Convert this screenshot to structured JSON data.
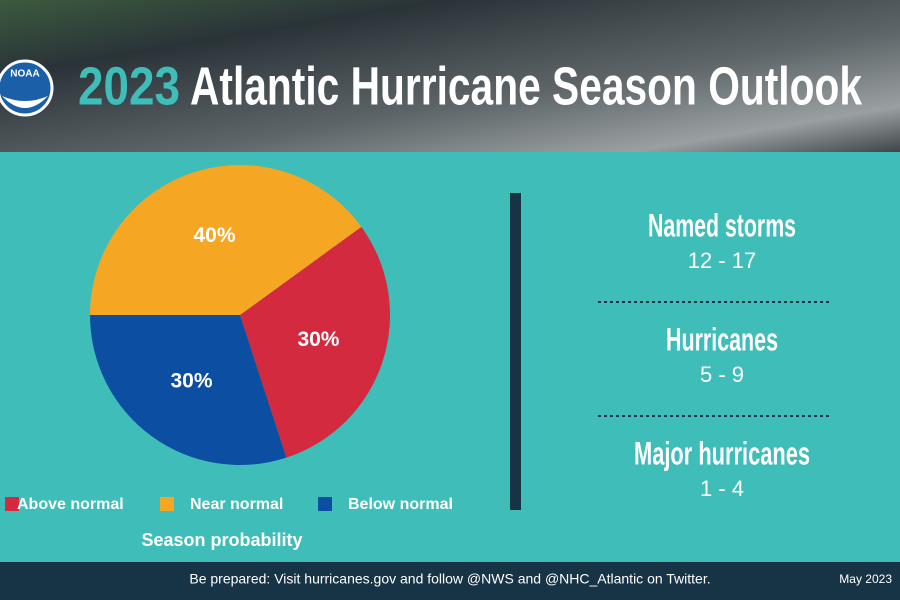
{
  "header": {
    "logo": "NOAA",
    "year": "2023",
    "title": "Atlantic Hurricane Season Outlook"
  },
  "chart_data": {
    "type": "pie",
    "categories": [
      "Above normal",
      "Near normal",
      "Below normal"
    ],
    "values": [
      30,
      40,
      30
    ],
    "value_labels": [
      "30%",
      "40%",
      "30%"
    ],
    "colors": [
      "#d42a40",
      "#f5a623",
      "#0c4ea2"
    ],
    "legend_title": "Season probability"
  },
  "stats": [
    {
      "label": "Named storms",
      "value": "12 - 17"
    },
    {
      "label": "Hurricanes",
      "value": "5 - 9"
    },
    {
      "label": "Major hurricanes",
      "value": "1 - 4"
    }
  ],
  "footer": {
    "text": "Be prepared: Visit hurricanes.gov and follow @NWS and @NHC_Atlantic on Twitter.",
    "date": "May 2023"
  }
}
